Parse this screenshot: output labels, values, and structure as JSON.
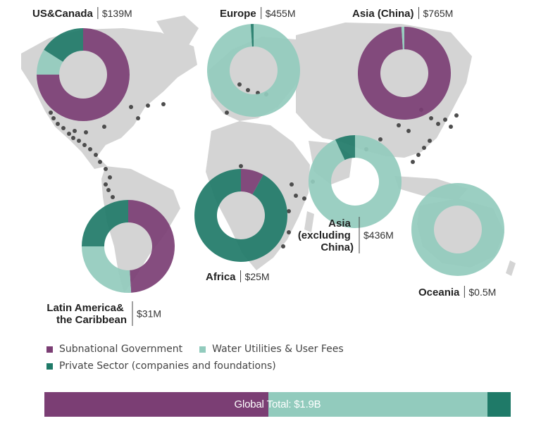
{
  "colors": {
    "subnational": "#7b3e74",
    "utilities": "#92cbbd",
    "private": "#1f7a68",
    "map": "#d4d4d4",
    "dots": "#4d4d4d"
  },
  "chart_data": {
    "type": "pie",
    "variant": "donut",
    "categories": [
      "Subnational Government",
      "Water Utilities & User Fees",
      "Private Sector (companies and foundations)"
    ],
    "regions": [
      {
        "name": "US&Canada",
        "amount": "$139M",
        "values": [
          0.75,
          0.09,
          0.16
        ]
      },
      {
        "name": "Europe",
        "amount": "$455M",
        "values": [
          0.0,
          0.99,
          0.01
        ]
      },
      {
        "name": "Asia (China)",
        "amount": "$765M",
        "values": [
          0.99,
          0.01,
          0.0
        ]
      },
      {
        "name": "Africa",
        "amount": "$25M",
        "values": [
          0.08,
          0.0,
          0.92
        ]
      },
      {
        "name": "Asia (excluding China)",
        "amount": "$436M",
        "values": [
          0.0,
          0.93,
          0.07
        ]
      },
      {
        "name": "Latin America& the Caribbean",
        "amount": "$31M",
        "values": [
          0.49,
          0.26,
          0.25
        ]
      },
      {
        "name": "Oceania",
        "amount": "$0.5M",
        "values": [
          0.0,
          1.0,
          0.0
        ]
      }
    ],
    "global": {
      "label_left": "Global",
      "label_right": "Total: $1.9B",
      "values": [
        0.48,
        0.47,
        0.05
      ]
    }
  },
  "legend": {
    "subnational": "Subnational Government",
    "utilities": "Water Utilities & User Fees",
    "private": "Private Sector (companies and foundations)"
  }
}
